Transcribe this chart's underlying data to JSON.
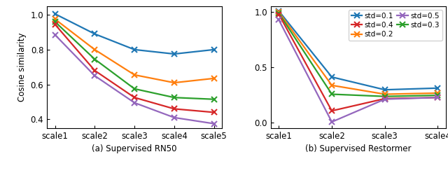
{
  "rn50": {
    "x_labels": [
      "scale1",
      "scale2",
      "scale3",
      "scale4",
      "scale5"
    ],
    "series": [
      {
        "label": "std=0.1",
        "color": "#1f77b4",
        "values": [
          1.005,
          0.89,
          0.8,
          0.775,
          0.8
        ]
      },
      {
        "label": "std=0.2",
        "color": "#ff7f0e",
        "values": [
          0.975,
          0.8,
          0.655,
          0.61,
          0.635
        ]
      },
      {
        "label": "std=0.3",
        "color": "#2ca02c",
        "values": [
          0.96,
          0.745,
          0.575,
          0.525,
          0.515
        ]
      },
      {
        "label": "std=0.4",
        "color": "#d62728",
        "values": [
          0.945,
          0.68,
          0.525,
          0.46,
          0.44
        ]
      },
      {
        "label": "std=0.5",
        "color": "#9467bd",
        "values": [
          0.885,
          0.65,
          0.495,
          0.41,
          0.375
        ]
      }
    ],
    "ylabel": "Cosine similarity",
    "ylim": [
      0.35,
      1.05
    ],
    "yticks": [
      0.4,
      0.6,
      0.8,
      1.0
    ],
    "title": "(a) Supervised RN50"
  },
  "restormer": {
    "x_labels": [
      "scale1",
      "scale2",
      "scale3",
      "scale4"
    ],
    "series": [
      {
        "label": "std=0.1",
        "color": "#1f77b4",
        "values": [
          1.005,
          0.41,
          0.295,
          0.31
        ]
      },
      {
        "label": "std=0.2",
        "color": "#ff7f0e",
        "values": [
          0.995,
          0.335,
          0.255,
          0.265
        ]
      },
      {
        "label": "std=0.3",
        "color": "#2ca02c",
        "values": [
          0.985,
          0.255,
          0.235,
          0.245
        ]
      },
      {
        "label": "std=0.4",
        "color": "#d62728",
        "values": [
          0.975,
          0.105,
          0.215,
          0.225
        ]
      },
      {
        "label": "std=0.5",
        "color": "#9467bd",
        "values": [
          0.925,
          0.005,
          0.21,
          0.225
        ]
      }
    ],
    "ylim": [
      -0.05,
      1.05
    ],
    "yticks": [
      0.0,
      0.5,
      1.0
    ],
    "title": "(b) Supervised Restormer"
  },
  "legend": {
    "col1": [
      {
        "label": "std=0.1",
        "color": "#1f77b4"
      },
      {
        "label": "std=0.2",
        "color": "#ff7f0e"
      },
      {
        "label": "std=0.3",
        "color": "#2ca02c"
      }
    ],
    "col2": [
      {
        "label": "std=0.4",
        "color": "#d62728"
      },
      {
        "label": "std=0.5",
        "color": "#9467bd"
      }
    ]
  },
  "marker": "x",
  "markersize": 6,
  "linewidth": 1.6,
  "fontsize": 8.5,
  "tick_fontsize": 8.5
}
